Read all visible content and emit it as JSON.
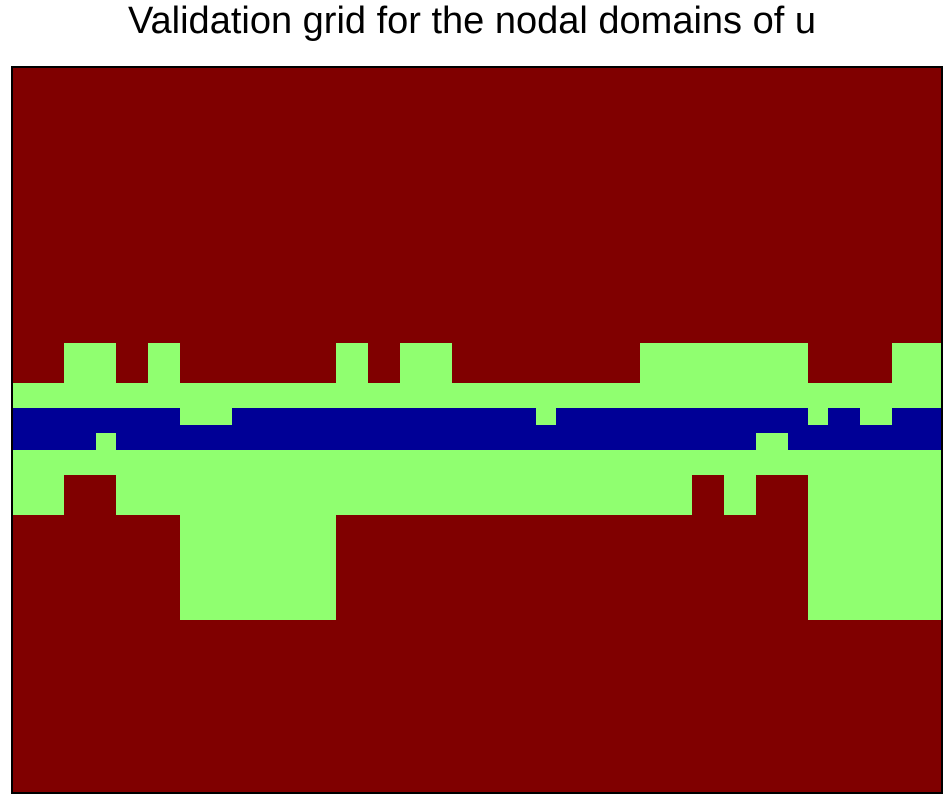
{
  "title": "Validation grid for the nodal domains of u",
  "chart_data": {
    "type": "heatmap",
    "title": "Validation grid for the nodal domains of u",
    "xlabel": "",
    "ylabel": "",
    "legend": "none",
    "grid": false,
    "colors": {
      "domain": "#800000",
      "boundary": "#90ff70",
      "interior": "#000096",
      "frame": "#000000"
    },
    "x_edges": [
      0,
      52,
      84,
      104,
      136,
      168,
      220,
      252,
      324,
      356,
      388,
      440,
      492,
      524,
      544,
      628,
      680,
      712,
      744,
      776,
      796,
      816,
      848,
      880,
      930
    ],
    "y_edges": [
      0,
      276,
      316,
      341,
      358,
      366,
      383,
      408,
      448,
      553,
      726
    ],
    "rows": [
      [
        0,
        0,
        0,
        0,
        0,
        0,
        0,
        0,
        0,
        0,
        0,
        0,
        0,
        0,
        0,
        0,
        0,
        0,
        0,
        0,
        0,
        0,
        0,
        0
      ],
      [
        0,
        1,
        1,
        0,
        1,
        0,
        0,
        0,
        1,
        0,
        1,
        0,
        0,
        0,
        0,
        1,
        1,
        1,
        1,
        1,
        0,
        0,
        0,
        1
      ],
      [
        1,
        1,
        1,
        1,
        1,
        1,
        1,
        1,
        1,
        1,
        1,
        1,
        1,
        1,
        1,
        1,
        1,
        1,
        1,
        1,
        1,
        1,
        1,
        1
      ],
      [
        2,
        2,
        2,
        2,
        2,
        1,
        2,
        2,
        2,
        2,
        2,
        2,
        2,
        1,
        2,
        2,
        2,
        2,
        2,
        2,
        1,
        2,
        1,
        2
      ],
      [
        2,
        2,
        2,
        2,
        2,
        2,
        2,
        2,
        2,
        2,
        2,
        2,
        2,
        2,
        2,
        2,
        2,
        2,
        2,
        2,
        2,
        2,
        2,
        2
      ],
      [
        2,
        2,
        1,
        2,
        2,
        2,
        2,
        2,
        2,
        2,
        2,
        2,
        2,
        2,
        2,
        2,
        2,
        2,
        1,
        2,
        2,
        2,
        2,
        2
      ],
      [
        1,
        1,
        1,
        1,
        1,
        1,
        1,
        1,
        1,
        1,
        1,
        1,
        1,
        1,
        1,
        1,
        1,
        1,
        1,
        1,
        1,
        1,
        1,
        1
      ],
      [
        1,
        0,
        0,
        1,
        1,
        1,
        1,
        1,
        1,
        1,
        1,
        1,
        1,
        1,
        1,
        1,
        0,
        1,
        0,
        0,
        1,
        1,
        1,
        1
      ],
      [
        0,
        0,
        0,
        0,
        0,
        1,
        1,
        1,
        0,
        0,
        0,
        0,
        0,
        0,
        0,
        0,
        0,
        0,
        0,
        0,
        1,
        1,
        1,
        1
      ],
      [
        0,
        0,
        0,
        0,
        0,
        0,
        0,
        0,
        0,
        0,
        0,
        0,
        0,
        0,
        0,
        0,
        0,
        0,
        0,
        0,
        0,
        0,
        0,
        0
      ]
    ]
  }
}
